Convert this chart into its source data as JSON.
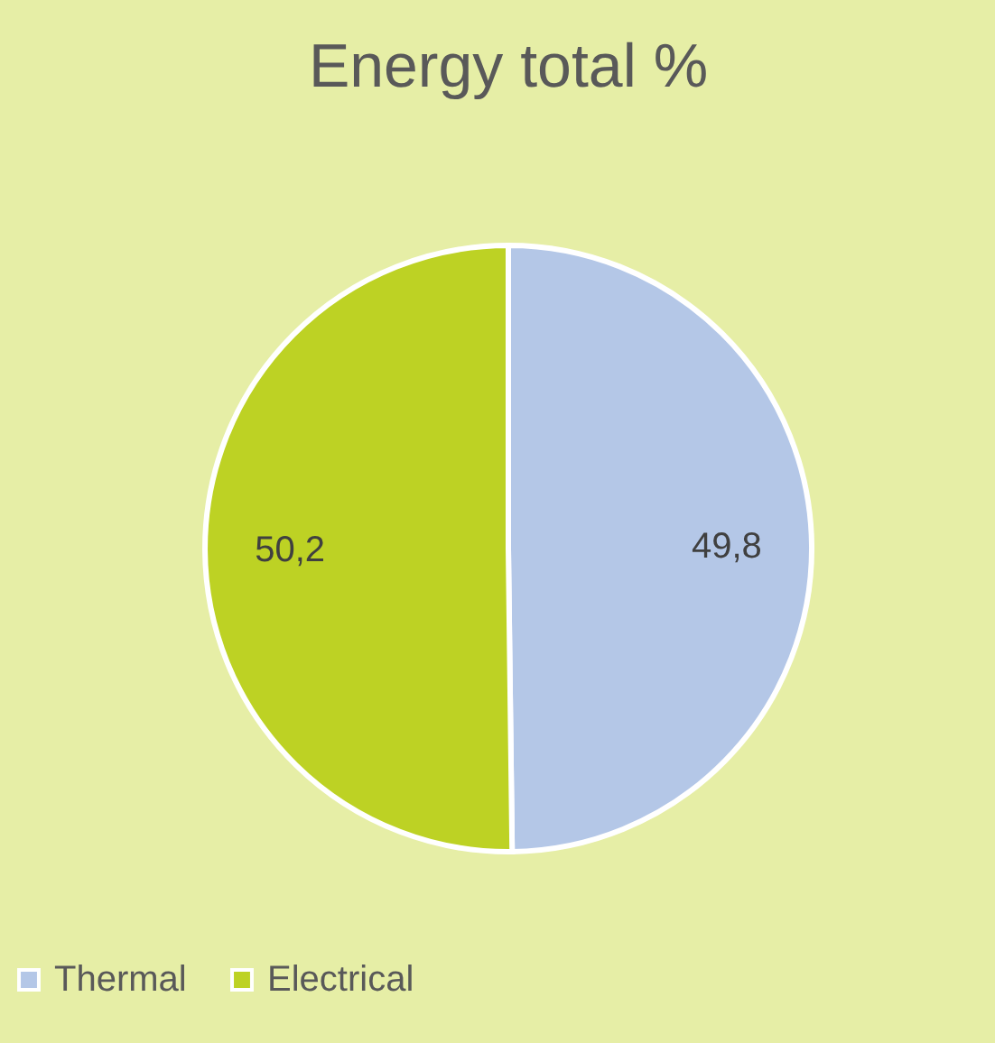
{
  "chart_data": {
    "type": "pie",
    "title": "Energy total %",
    "categories": [
      "Thermal",
      "Electrical"
    ],
    "values": [
      49.8,
      50.2
    ],
    "colors": [
      "#b4c7e7",
      "#bdd224"
    ],
    "value_labels": [
      "49,8",
      "50,2"
    ],
    "legend": "bottom"
  }
}
